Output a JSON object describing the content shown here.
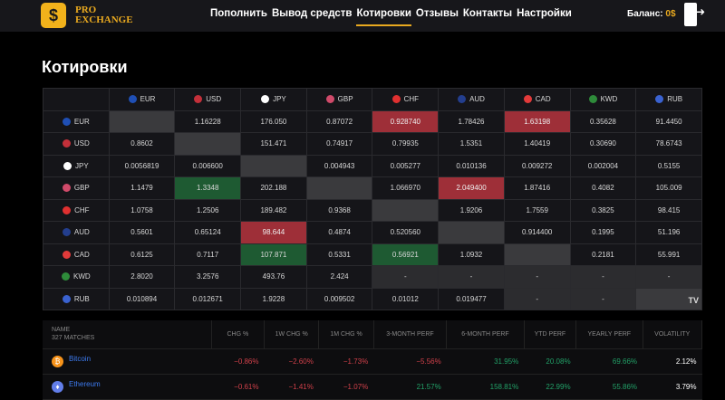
{
  "nav": {
    "brand_line1": "PRO",
    "brand_line2": "EXCHANGE",
    "items": [
      "Пополнить",
      "Вывод средств",
      "Котировки",
      "Отзывы",
      "Контакты",
      "Настройки"
    ],
    "active": "Котировки",
    "balance_label": "Баланс:",
    "balance_value": "0$"
  },
  "title": "Котировки",
  "quotes": {
    "currencies": [
      {
        "code": "EUR",
        "color": "#1f4fb5"
      },
      {
        "code": "USD",
        "color": "#c4303a"
      },
      {
        "code": "JPY",
        "color": "#ffffff"
      },
      {
        "code": "GBP",
        "color": "#d04a6a"
      },
      {
        "code": "CHF",
        "color": "#e03030"
      },
      {
        "code": "AUD",
        "color": "#233e8e"
      },
      {
        "code": "CAD",
        "color": "#e23a3a"
      },
      {
        "code": "KWD",
        "color": "#2e8b3a"
      },
      {
        "code": "RUB",
        "color": "#3a62d0"
      }
    ],
    "rows": [
      [
        [
          "",
          "diag"
        ],
        [
          "1.16228",
          ""
        ],
        [
          "176.050",
          ""
        ],
        [
          "0.87072",
          ""
        ],
        [
          "0.928740",
          "red"
        ],
        [
          "1.78426",
          ""
        ],
        [
          "1.63198",
          "red"
        ],
        [
          "0.35628",
          ""
        ],
        [
          "91.4450",
          ""
        ]
      ],
      [
        [
          "0.8602",
          ""
        ],
        [
          "",
          "diag"
        ],
        [
          "151.471",
          ""
        ],
        [
          "0.74917",
          ""
        ],
        [
          "0.79935",
          ""
        ],
        [
          "1.5351",
          ""
        ],
        [
          "1.40419",
          ""
        ],
        [
          "0.30690",
          ""
        ],
        [
          "78.6743",
          ""
        ]
      ],
      [
        [
          "0.0056819",
          ""
        ],
        [
          "0.006600",
          ""
        ],
        [
          "",
          "diag"
        ],
        [
          "0.004943",
          ""
        ],
        [
          "0.005277",
          ""
        ],
        [
          "0.010136",
          ""
        ],
        [
          "0.009272",
          ""
        ],
        [
          "0.002004",
          ""
        ],
        [
          "0.5155",
          ""
        ]
      ],
      [
        [
          "1.1479",
          ""
        ],
        [
          "1.3348",
          "green"
        ],
        [
          "202.188",
          ""
        ],
        [
          "",
          "diag"
        ],
        [
          "1.066970",
          ""
        ],
        [
          "2.049400",
          "red"
        ],
        [
          "1.87416",
          ""
        ],
        [
          "0.4082",
          ""
        ],
        [
          "105.009",
          ""
        ]
      ],
      [
        [
          "1.0758",
          ""
        ],
        [
          "1.2506",
          ""
        ],
        [
          "189.482",
          ""
        ],
        [
          "0.9368",
          ""
        ],
        [
          "",
          "diag"
        ],
        [
          "1.9206",
          ""
        ],
        [
          "1.7559",
          ""
        ],
        [
          "0.3825",
          ""
        ],
        [
          "98.415",
          ""
        ]
      ],
      [
        [
          "0.5601",
          ""
        ],
        [
          "0.65124",
          ""
        ],
        [
          "98.644",
          "red"
        ],
        [
          "0.4874",
          ""
        ],
        [
          "0.520560",
          ""
        ],
        [
          "",
          "diag"
        ],
        [
          "0.914400",
          ""
        ],
        [
          "0.1995",
          ""
        ],
        [
          "51.196",
          ""
        ]
      ],
      [
        [
          "0.6125",
          ""
        ],
        [
          "0.7117",
          ""
        ],
        [
          "107.871",
          "green"
        ],
        [
          "0.5331",
          ""
        ],
        [
          "0.56921",
          "green"
        ],
        [
          "1.0932",
          ""
        ],
        [
          "",
          "diag"
        ],
        [
          "0.2181",
          ""
        ],
        [
          "55.991",
          ""
        ]
      ],
      [
        [
          "2.8020",
          ""
        ],
        [
          "3.2576",
          ""
        ],
        [
          "493.76",
          ""
        ],
        [
          "2.424",
          ""
        ],
        [
          "-",
          "na"
        ],
        [
          "-",
          "na"
        ],
        [
          "-",
          "na"
        ],
        [
          "-",
          "na"
        ],
        [
          "-",
          "na"
        ]
      ],
      [
        [
          "0.010894",
          ""
        ],
        [
          "0.012671",
          ""
        ],
        [
          "1.9228",
          ""
        ],
        [
          "0.009502",
          ""
        ],
        [
          "0.01012",
          ""
        ],
        [
          "0.019477",
          ""
        ],
        [
          "-",
          "na"
        ],
        [
          "-",
          "na"
        ],
        [
          "",
          "diag"
        ]
      ]
    ],
    "logo": "TV"
  },
  "market": {
    "headers": [
      "CHG %",
      "1W CHG %",
      "1M CHG %",
      "3-MONTH PERF",
      "6-MONTH PERF",
      "YTD PERF",
      "YEARLY PERF",
      "VOLATILITY"
    ],
    "name_header": "NAME",
    "matches": "327 MATCHES",
    "rows": [
      {
        "name": "Bitcoin",
        "icon": "bitcoin-icon",
        "icon_color": "#f7931a",
        "glyph": "₿",
        "values": [
          "−0.86%",
          "−2.60%",
          "−1.73%",
          "−5.56%",
          "31.95%",
          "20.08%",
          "69.66%",
          "2.12%"
        ]
      },
      {
        "name": "Ethereum",
        "icon": "ethereum-icon",
        "icon_color": "#627eea",
        "glyph": "♦",
        "values": [
          "−0.61%",
          "−1.41%",
          "−1.07%",
          "21.57%",
          "158.81%",
          "22.99%",
          "55.86%",
          "3.79%"
        ]
      }
    ]
  }
}
